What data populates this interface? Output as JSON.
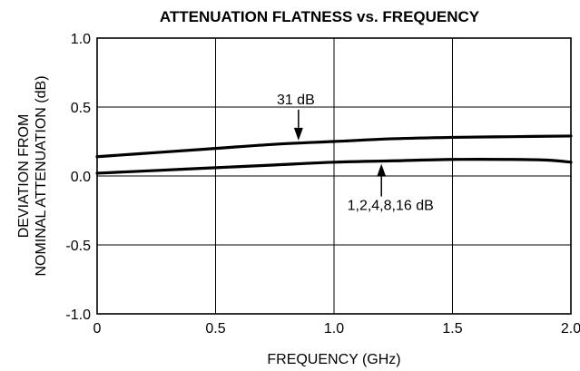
{
  "chart_data": {
    "type": "line",
    "title": "ATTENUATION FLATNESS vs. FREQUENCY",
    "xlabel": "FREQUENCY (GHz)",
    "ylabel_lines": [
      "DEVIATION FROM",
      "NOMINAL ATTENUATION (dB)"
    ],
    "xlim": [
      0,
      2.0
    ],
    "ylim": [
      -1.0,
      1.0
    ],
    "x_ticks": [
      0,
      0.5,
      1.0,
      1.5,
      2.0
    ],
    "x_tick_labels": [
      "0",
      "0.5",
      "1.0",
      "1.5",
      "2.0"
    ],
    "y_ticks": [
      1.0,
      0.5,
      0.0,
      -0.5,
      -1.0
    ],
    "y_tick_labels": [
      "1.0",
      "0.5",
      "0.0",
      "-0.5",
      "-1.0"
    ],
    "grid": true,
    "series": [
      {
        "name": "31 dB",
        "x": [
          0,
          0.25,
          0.5,
          0.75,
          1.0,
          1.25,
          1.5,
          1.75,
          2.0
        ],
        "y": [
          0.14,
          0.17,
          0.2,
          0.23,
          0.25,
          0.27,
          0.28,
          0.285,
          0.29
        ]
      },
      {
        "name": "1,2,4,8,16 dB",
        "x": [
          0,
          0.25,
          0.5,
          0.75,
          1.0,
          1.25,
          1.5,
          1.75,
          1.9,
          2.0
        ],
        "y": [
          0.02,
          0.04,
          0.06,
          0.08,
          0.1,
          0.11,
          0.12,
          0.12,
          0.115,
          0.1
        ]
      }
    ],
    "annotations": [
      {
        "text": "31 dB",
        "series": 0,
        "x": 0.85
      },
      {
        "text": "1,2,4,8,16 dB",
        "series": 1,
        "x": 1.2
      }
    ]
  }
}
